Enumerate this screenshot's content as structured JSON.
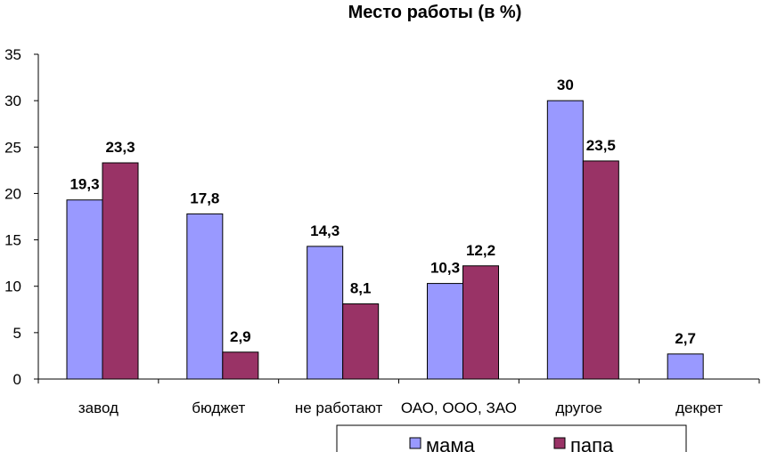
{
  "chart_data": {
    "type": "bar",
    "title": "Место работы (в %)",
    "categories": [
      "завод",
      "бюджет",
      "не работают",
      "ОАО, ООО, ЗАО",
      "другое",
      "декрет"
    ],
    "series": [
      {
        "name": "мама",
        "values": [
          19.3,
          17.8,
          14.3,
          10.3,
          30,
          2.7
        ],
        "labels": [
          "19,3",
          "17,8",
          "14,3",
          "10,3",
          "30",
          "2,7"
        ],
        "color": "#9999ff"
      },
      {
        "name": "папа",
        "values": [
          23.3,
          2.9,
          8.1,
          12.2,
          23.5,
          null
        ],
        "labels": [
          "23,3",
          "2,9",
          "8,1",
          "12,2",
          "23,5",
          ""
        ],
        "color": "#993366"
      }
    ],
    "ylim": [
      0,
      35
    ],
    "yticks": [
      "0",
      "5",
      "10",
      "15",
      "20",
      "25",
      "30",
      "35"
    ],
    "grid": false,
    "legend_position": "bottom"
  }
}
